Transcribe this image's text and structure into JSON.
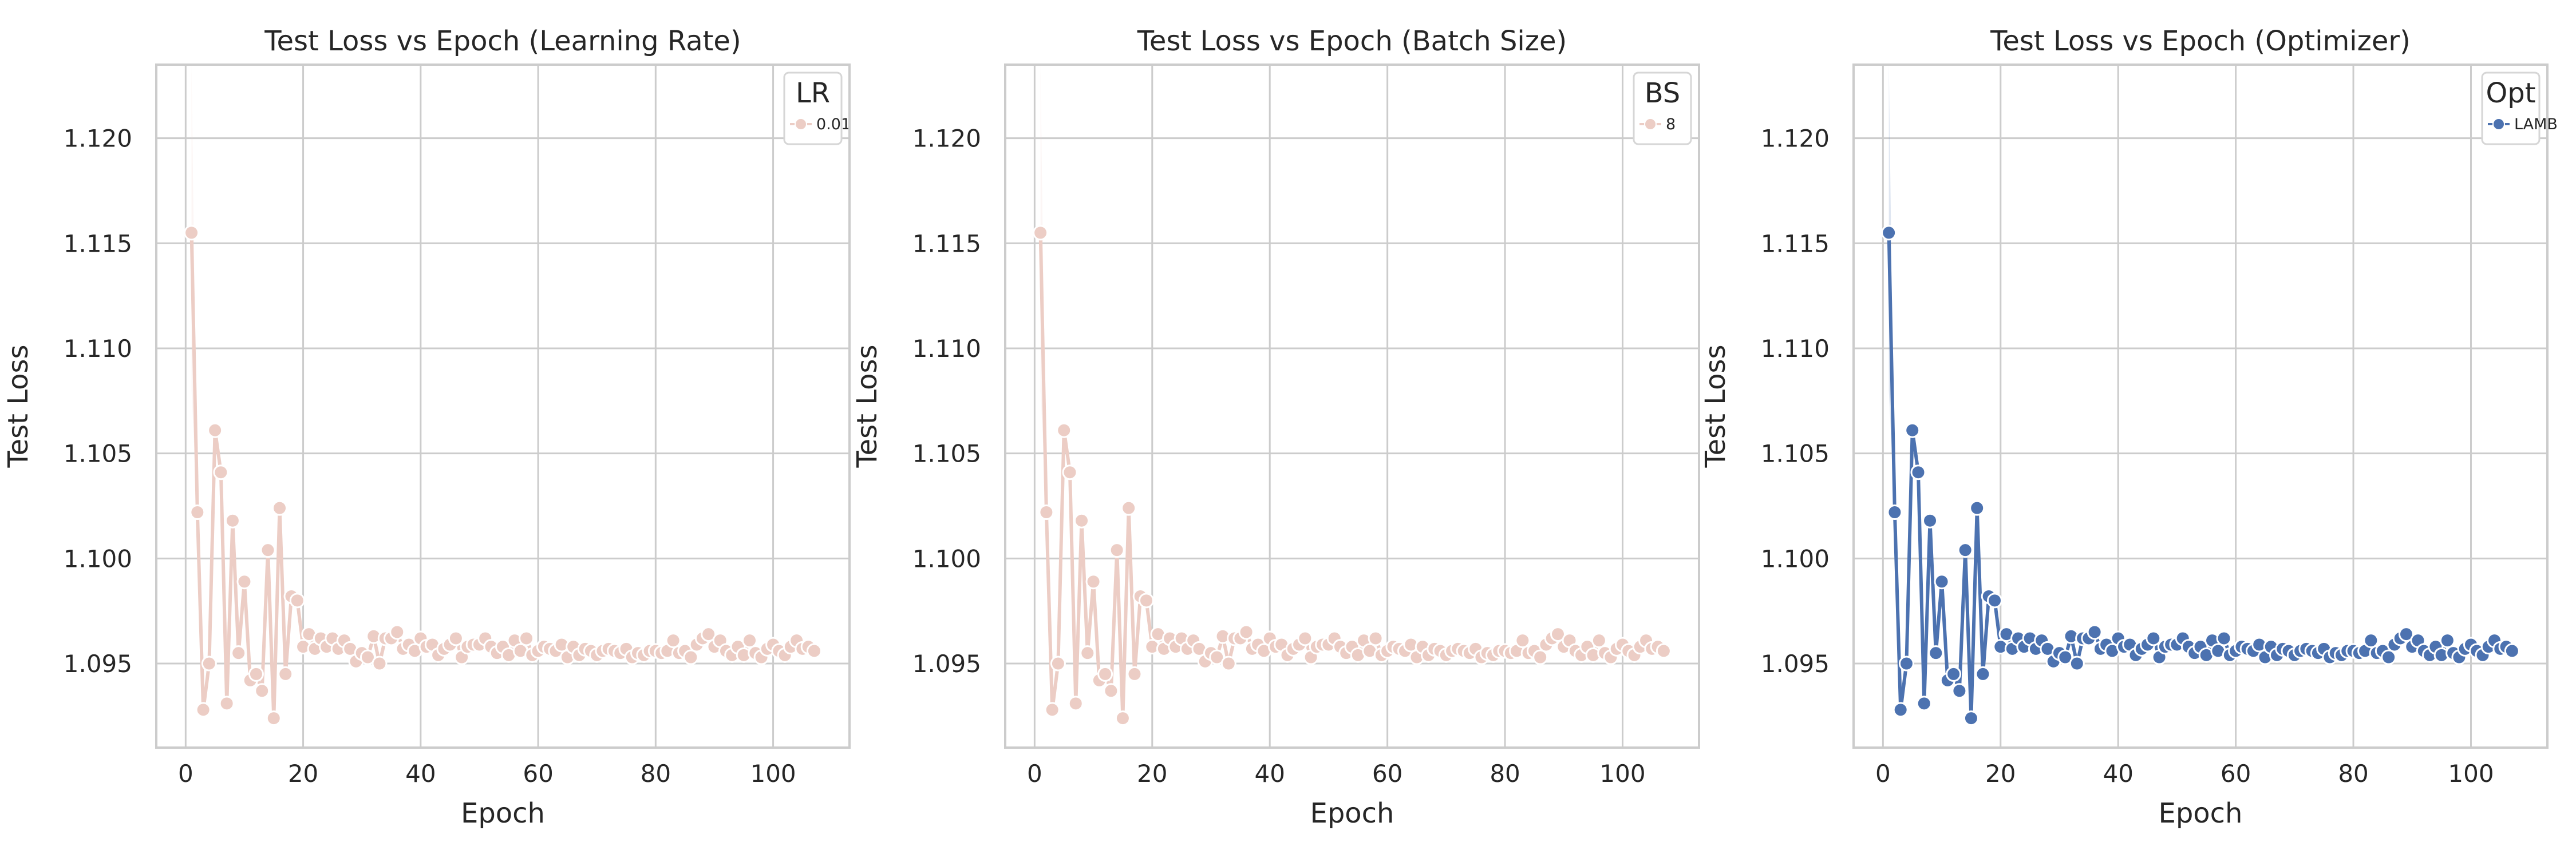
{
  "chart_data": [
    {
      "type": "line",
      "title": "Test Loss vs Epoch (Learning Rate)",
      "xlabel": "Epoch",
      "ylabel": "Test Loss",
      "xlim": [
        -5,
        113
      ],
      "ylim": [
        1.091,
        1.1235
      ],
      "xticks": [
        0,
        20,
        40,
        60,
        80,
        100
      ],
      "yticks": [
        1.095,
        1.1,
        1.105,
        1.11,
        1.115,
        1.12
      ],
      "grid": true,
      "legend": {
        "title": "LR",
        "entries": [
          "0.01"
        ],
        "placement": "top-right"
      },
      "series": [
        {
          "name": "0.01",
          "color": "#eccdc5",
          "marker": "circle",
          "x": [
            1,
            2,
            3,
            4,
            5,
            6,
            7,
            8,
            9,
            10,
            11,
            12,
            13,
            14,
            15,
            16,
            17,
            18,
            19,
            20,
            21,
            22,
            23,
            24,
            25,
            26,
            27,
            28,
            29,
            30,
            31,
            32,
            33,
            34,
            35,
            36,
            37,
            38,
            39,
            40,
            41,
            42,
            43,
            44,
            45,
            46,
            47,
            48,
            49,
            50,
            51,
            52,
            53,
            54,
            55,
            56,
            57,
            58,
            59,
            60,
            61,
            62,
            63,
            64,
            65,
            66,
            67,
            68,
            69,
            70,
            71,
            72,
            73,
            74,
            75,
            76,
            77,
            78,
            79,
            80,
            81,
            82,
            83,
            84,
            85,
            86,
            87,
            88,
            89,
            90,
            91,
            92,
            93,
            94,
            95,
            96,
            97,
            98,
            99,
            100,
            101,
            102,
            103,
            104,
            105,
            106,
            107
          ],
          "y": [
            1.1155,
            1.1022,
            1.0928,
            1.095,
            1.1061,
            1.1041,
            1.0931,
            1.1018,
            1.0955,
            1.0989,
            1.0942,
            1.0945,
            1.0937,
            1.1004,
            1.0924,
            1.1024,
            1.0945,
            1.0982,
            1.098,
            1.0958,
            1.0964,
            1.0957,
            1.0962,
            1.0958,
            1.0962,
            1.0957,
            1.0961,
            1.0957,
            1.0951,
            1.0955,
            1.0953,
            1.0963,
            1.095,
            1.0962,
            1.0962,
            1.0965,
            1.0957,
            1.0959,
            1.0956,
            1.0962,
            1.0958,
            1.0959,
            1.0954,
            1.0957,
            1.0959,
            1.0962,
            1.0953,
            1.0958,
            1.0959,
            1.0959,
            1.0962,
            1.0958,
            1.0955,
            1.0958,
            1.0954,
            1.0961,
            1.0956,
            1.0962,
            1.0954,
            1.0956,
            1.0958,
            1.0957,
            1.0956,
            1.0959,
            1.0953,
            1.0958,
            1.0954,
            1.0957,
            1.0956,
            1.0954,
            1.0956,
            1.0957,
            1.0956,
            1.0955,
            1.0957,
            1.0953,
            1.0955,
            1.0954,
            1.0956,
            1.0956,
            1.0955,
            1.0956,
            1.0961,
            1.0955,
            1.0956,
            1.0953,
            1.0959,
            1.0962,
            1.0964,
            1.0958,
            1.0961,
            1.0956,
            1.0954,
            1.0958,
            1.0954,
            1.0961,
            1.0955,
            1.0953,
            1.0957,
            1.0959,
            1.0956,
            1.0954,
            1.0958,
            1.0961,
            1.0957,
            1.0958,
            1.0956
          ]
        }
      ]
    },
    {
      "type": "line",
      "title": "Test Loss vs Epoch (Batch Size)",
      "xlabel": "Epoch",
      "ylabel": "Test Loss",
      "xlim": [
        -5,
        113
      ],
      "ylim": [
        1.091,
        1.1235
      ],
      "xticks": [
        0,
        20,
        40,
        60,
        80,
        100
      ],
      "yticks": [
        1.095,
        1.1,
        1.105,
        1.11,
        1.115,
        1.12
      ],
      "grid": true,
      "legend": {
        "title": "BS",
        "entries": [
          "8"
        ],
        "placement": "top-right"
      },
      "series": [
        {
          "name": "8",
          "color": "#eccdc5",
          "marker": "circle",
          "x": [
            1,
            2,
            3,
            4,
            5,
            6,
            7,
            8,
            9,
            10,
            11,
            12,
            13,
            14,
            15,
            16,
            17,
            18,
            19,
            20,
            21,
            22,
            23,
            24,
            25,
            26,
            27,
            28,
            29,
            30,
            31,
            32,
            33,
            34,
            35,
            36,
            37,
            38,
            39,
            40,
            41,
            42,
            43,
            44,
            45,
            46,
            47,
            48,
            49,
            50,
            51,
            52,
            53,
            54,
            55,
            56,
            57,
            58,
            59,
            60,
            61,
            62,
            63,
            64,
            65,
            66,
            67,
            68,
            69,
            70,
            71,
            72,
            73,
            74,
            75,
            76,
            77,
            78,
            79,
            80,
            81,
            82,
            83,
            84,
            85,
            86,
            87,
            88,
            89,
            90,
            91,
            92,
            93,
            94,
            95,
            96,
            97,
            98,
            99,
            100,
            101,
            102,
            103,
            104,
            105,
            106,
            107
          ],
          "y": [
            1.1155,
            1.1022,
            1.0928,
            1.095,
            1.1061,
            1.1041,
            1.0931,
            1.1018,
            1.0955,
            1.0989,
            1.0942,
            1.0945,
            1.0937,
            1.1004,
            1.0924,
            1.1024,
            1.0945,
            1.0982,
            1.098,
            1.0958,
            1.0964,
            1.0957,
            1.0962,
            1.0958,
            1.0962,
            1.0957,
            1.0961,
            1.0957,
            1.0951,
            1.0955,
            1.0953,
            1.0963,
            1.095,
            1.0962,
            1.0962,
            1.0965,
            1.0957,
            1.0959,
            1.0956,
            1.0962,
            1.0958,
            1.0959,
            1.0954,
            1.0957,
            1.0959,
            1.0962,
            1.0953,
            1.0958,
            1.0959,
            1.0959,
            1.0962,
            1.0958,
            1.0955,
            1.0958,
            1.0954,
            1.0961,
            1.0956,
            1.0962,
            1.0954,
            1.0956,
            1.0958,
            1.0957,
            1.0956,
            1.0959,
            1.0953,
            1.0958,
            1.0954,
            1.0957,
            1.0956,
            1.0954,
            1.0956,
            1.0957,
            1.0956,
            1.0955,
            1.0957,
            1.0953,
            1.0955,
            1.0954,
            1.0956,
            1.0956,
            1.0955,
            1.0956,
            1.0961,
            1.0955,
            1.0956,
            1.0953,
            1.0959,
            1.0962,
            1.0964,
            1.0958,
            1.0961,
            1.0956,
            1.0954,
            1.0958,
            1.0954,
            1.0961,
            1.0955,
            1.0953,
            1.0957,
            1.0959,
            1.0956,
            1.0954,
            1.0958,
            1.0961,
            1.0957,
            1.0958,
            1.0956
          ]
        }
      ]
    },
    {
      "type": "line",
      "title": "Test Loss vs Epoch (Optimizer)",
      "xlabel": "Epoch",
      "ylabel": "Test Loss",
      "xlim": [
        -5,
        113
      ],
      "ylim": [
        1.091,
        1.1235
      ],
      "xticks": [
        0,
        20,
        40,
        60,
        80,
        100
      ],
      "yticks": [
        1.095,
        1.1,
        1.105,
        1.11,
        1.115,
        1.12
      ],
      "grid": true,
      "legend": {
        "title": "Opt",
        "entries": [
          "LAMB"
        ],
        "placement": "top-right"
      },
      "series": [
        {
          "name": "LAMB",
          "color": "#4c72b0",
          "marker": "circle",
          "x": [
            1,
            2,
            3,
            4,
            5,
            6,
            7,
            8,
            9,
            10,
            11,
            12,
            13,
            14,
            15,
            16,
            17,
            18,
            19,
            20,
            21,
            22,
            23,
            24,
            25,
            26,
            27,
            28,
            29,
            30,
            31,
            32,
            33,
            34,
            35,
            36,
            37,
            38,
            39,
            40,
            41,
            42,
            43,
            44,
            45,
            46,
            47,
            48,
            49,
            50,
            51,
            52,
            53,
            54,
            55,
            56,
            57,
            58,
            59,
            60,
            61,
            62,
            63,
            64,
            65,
            66,
            67,
            68,
            69,
            70,
            71,
            72,
            73,
            74,
            75,
            76,
            77,
            78,
            79,
            80,
            81,
            82,
            83,
            84,
            85,
            86,
            87,
            88,
            89,
            90,
            91,
            92,
            93,
            94,
            95,
            96,
            97,
            98,
            99,
            100,
            101,
            102,
            103,
            104,
            105,
            106,
            107
          ],
          "y": [
            1.1155,
            1.1022,
            1.0928,
            1.095,
            1.1061,
            1.1041,
            1.0931,
            1.1018,
            1.0955,
            1.0989,
            1.0942,
            1.0945,
            1.0937,
            1.1004,
            1.0924,
            1.1024,
            1.0945,
            1.0982,
            1.098,
            1.0958,
            1.0964,
            1.0957,
            1.0962,
            1.0958,
            1.0962,
            1.0957,
            1.0961,
            1.0957,
            1.0951,
            1.0955,
            1.0953,
            1.0963,
            1.095,
            1.0962,
            1.0962,
            1.0965,
            1.0957,
            1.0959,
            1.0956,
            1.0962,
            1.0958,
            1.0959,
            1.0954,
            1.0957,
            1.0959,
            1.0962,
            1.0953,
            1.0958,
            1.0959,
            1.0959,
            1.0962,
            1.0958,
            1.0955,
            1.0958,
            1.0954,
            1.0961,
            1.0956,
            1.0962,
            1.0954,
            1.0956,
            1.0958,
            1.0957,
            1.0956,
            1.0959,
            1.0953,
            1.0958,
            1.0954,
            1.0957,
            1.0956,
            1.0954,
            1.0956,
            1.0957,
            1.0956,
            1.0955,
            1.0957,
            1.0953,
            1.0955,
            1.0954,
            1.0956,
            1.0956,
            1.0955,
            1.0956,
            1.0961,
            1.0955,
            1.0956,
            1.0953,
            1.0959,
            1.0962,
            1.0964,
            1.0958,
            1.0961,
            1.0956,
            1.0954,
            1.0958,
            1.0954,
            1.0961,
            1.0955,
            1.0953,
            1.0957,
            1.0959,
            1.0956,
            1.0954,
            1.0958,
            1.0961,
            1.0957,
            1.0958,
            1.0956
          ]
        }
      ]
    }
  ]
}
